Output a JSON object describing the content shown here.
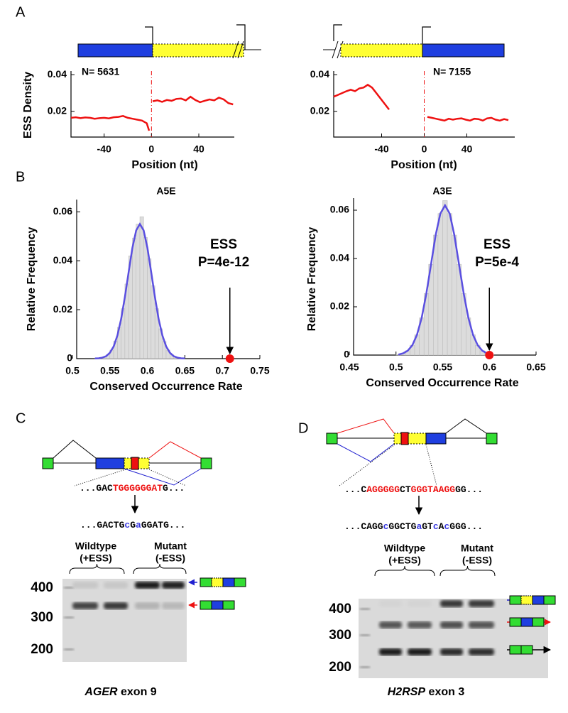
{
  "panels": {
    "a": "A",
    "b": "B",
    "c": "C",
    "d": "D"
  },
  "chart_data": [
    {
      "type": "line",
      "ylabel": "ESS Density",
      "xlabel": "Position (nt)",
      "annotation": "N= 5631",
      "xlim": [
        -68,
        70
      ],
      "ylim": [
        0.006,
        0.042
      ],
      "xticks": [
        -40,
        0,
        40
      ],
      "yticks": [
        0.02,
        0.04
      ],
      "series": [
        {
          "color": "#ee1111",
          "x": [
            -68,
            -64,
            -60,
            -56,
            -52,
            -48,
            -44,
            -40,
            -36,
            -32,
            -28,
            -24,
            -20,
            -16,
            -12,
            -8,
            -4,
            -2,
            -1,
            1,
            5,
            9,
            13,
            17,
            21,
            25,
            29,
            33,
            37,
            41,
            45,
            49,
            53,
            57,
            61,
            65,
            69
          ],
          "values": [
            0.0165,
            0.0168,
            0.0163,
            0.0167,
            0.0165,
            0.016,
            0.0163,
            0.0165,
            0.0162,
            0.0168,
            0.017,
            0.0175,
            0.0165,
            0.016,
            0.0155,
            0.015,
            0.0135,
            0.0095,
            null,
            0.0255,
            0.026,
            0.0252,
            0.0262,
            0.0258,
            0.0268,
            0.027,
            0.026,
            0.028,
            0.0262,
            0.025,
            0.0258,
            0.0265,
            0.026,
            0.0275,
            0.0265,
            0.0245,
            0.0238
          ]
        }
      ]
    },
    {
      "type": "line",
      "xlabel": "Position (nt)",
      "annotation": "N= 7155",
      "xlim": [
        -85,
        85
      ],
      "ylim": [
        0.006,
        0.042
      ],
      "xticks": [
        -40,
        0,
        40
      ],
      "yticks": [
        0.02,
        0.04
      ],
      "series": [
        {
          "color": "#ee1111",
          "x": [
            -85,
            -81,
            -77,
            -73,
            -69,
            -65,
            -61,
            -57,
            -53,
            -49,
            -45,
            -41,
            -37,
            -33,
            -15,
            3,
            7,
            11,
            15,
            19,
            23,
            27,
            31,
            35,
            39,
            43,
            47,
            51,
            55,
            59,
            63,
            67,
            71,
            75,
            79
          ],
          "values": [
            0.028,
            0.029,
            0.03,
            0.031,
            0.0318,
            0.031,
            0.0325,
            0.033,
            0.0345,
            0.033,
            0.03,
            0.027,
            0.024,
            0.021,
            null,
            0.017,
            0.0165,
            0.016,
            0.0155,
            0.015,
            0.016,
            0.0155,
            0.016,
            0.0162,
            0.0155,
            0.015,
            0.016,
            0.0158,
            0.015,
            0.0162,
            0.0165,
            0.0155,
            0.015,
            0.0158,
            0.0152
          ]
        }
      ]
    },
    {
      "type": "histogram",
      "title": "A5E",
      "ylabel": "Relative Frequency",
      "xlabel": "Conserved Occurrence Rate",
      "annotation": [
        "ESS",
        "P=4e-12"
      ],
      "observed": 0.71,
      "observed_color": "#ee1111",
      "xlim": [
        0.5,
        0.75
      ],
      "ylim": [
        0,
        0.065
      ],
      "xticks": [
        0.5,
        0.55,
        0.6,
        0.65,
        0.7,
        0.75
      ],
      "yticks": [
        0,
        0.02,
        0.04,
        0.06
      ],
      "bins": [
        0.53,
        0.535,
        0.54,
        0.545,
        0.55,
        0.555,
        0.56,
        0.565,
        0.57,
        0.575,
        0.58,
        0.585,
        0.59,
        0.595,
        0.6,
        0.605,
        0.61,
        0.615,
        0.62,
        0.625,
        0.63,
        0.635,
        0.64,
        0.645,
        0.65
      ],
      "counts": [
        0.0001,
        0.0003,
        0.0007,
        0.0016,
        0.0035,
        0.0072,
        0.0128,
        0.0204,
        0.0305,
        0.042,
        0.0493,
        0.055,
        0.058,
        0.0495,
        0.0408,
        0.0298,
        0.0204,
        0.0122,
        0.007,
        0.0035,
        0.0016,
        0.0007,
        0.0003,
        0.0001
      ],
      "color": "#dcdcdc",
      "curve": {
        "color": "#5a4fe0",
        "x": [
          0.53,
          0.535,
          0.54,
          0.545,
          0.55,
          0.555,
          0.56,
          0.565,
          0.57,
          0.575,
          0.58,
          0.585,
          0.59,
          0.595,
          0.6,
          0.605,
          0.61,
          0.615,
          0.62,
          0.625,
          0.63,
          0.635,
          0.64,
          0.645,
          0.65
        ],
        "values": [
          5e-05,
          0.00015,
          0.0004,
          0.001,
          0.0024,
          0.005,
          0.0095,
          0.0162,
          0.0252,
          0.0354,
          0.0453,
          0.0524,
          0.055,
          0.0524,
          0.0453,
          0.0354,
          0.0252,
          0.0162,
          0.0095,
          0.005,
          0.0024,
          0.001,
          0.0004,
          0.00015,
          5e-05
        ]
      }
    },
    {
      "type": "histogram",
      "title": "A3E",
      "ylabel": "Relative Frequency",
      "xlabel": "Conserved Occurrence Rate",
      "annotation": [
        "ESS",
        "P=5e-4"
      ],
      "observed": 0.6,
      "observed_color": "#ee1111",
      "xlim": [
        0.45,
        0.65
      ],
      "ylim": [
        0,
        0.065
      ],
      "xticks": [
        0.45,
        0.5,
        0.55,
        0.6,
        0.65
      ],
      "yticks": [
        0,
        0.02,
        0.04,
        0.06
      ],
      "bins": [
        0.5,
        0.505,
        0.51,
        0.515,
        0.52,
        0.525,
        0.53,
        0.535,
        0.54,
        0.545,
        0.55,
        0.555,
        0.56,
        0.565,
        0.57,
        0.575,
        0.58,
        0.585,
        0.59,
        0.595,
        0.6,
        0.605
      ],
      "counts": [
        0.0002,
        0.0007,
        0.0018,
        0.0041,
        0.0084,
        0.0154,
        0.0255,
        0.0376,
        0.0497,
        0.0586,
        0.064,
        0.0586,
        0.0497,
        0.0376,
        0.0255,
        0.0154,
        0.0084,
        0.0041,
        0.0018,
        0.0007,
        0.0002
      ],
      "color": "#dcdcdc",
      "curve": {
        "color": "#5a4fe0",
        "x": [
          0.5025,
          0.5075,
          0.5125,
          0.5175,
          0.5225,
          0.5275,
          0.5325,
          0.5375,
          0.5425,
          0.5475,
          0.5525,
          0.5575,
          0.5625,
          0.5675,
          0.5725,
          0.5775,
          0.5825,
          0.5875,
          0.5925,
          0.5975,
          0.6025
        ],
        "values": [
          0.0002,
          0.0007,
          0.0018,
          0.0041,
          0.0084,
          0.0154,
          0.0255,
          0.0376,
          0.0497,
          0.0586,
          0.062,
          0.0586,
          0.0497,
          0.0376,
          0.0255,
          0.0154,
          0.0084,
          0.0041,
          0.0018,
          0.0007,
          0.0002
        ]
      }
    }
  ],
  "gels": [
    {
      "wildtype": [
        {
          "text": "...GAC",
          "color": "#000000"
        },
        {
          "text": "TGGGGGGAT",
          "color": "#ee1111"
        },
        {
          "text": "G...",
          "color": "#000000"
        }
      ],
      "mutant": [
        {
          "text": "...GACTG",
          "color": "#000000"
        },
        {
          "text": "c",
          "color": "#3a3ae0"
        },
        {
          "text": "G",
          "color": "#000000"
        },
        {
          "text": "a",
          "color": "#3a3ae0"
        },
        {
          "text": "GGATG...",
          "color": "#000000"
        }
      ],
      "groups": [
        [
          "Wildtype",
          "(+ESS)"
        ],
        [
          "Mutant",
          "(-ESS)"
        ]
      ],
      "ladder": [
        "400",
        "300",
        "200"
      ],
      "caption": [
        {
          "text": "AGER",
          "italic": true
        },
        {
          "text": " exon 9",
          "italic": false
        }
      ]
    },
    {
      "wildtype": [
        {
          "text": "...C",
          "color": "#000000"
        },
        {
          "text": "AGGGGG",
          "color": "#ee1111"
        },
        {
          "text": "CT",
          "color": "#000000"
        },
        {
          "text": "GGGTAAGG",
          "color": "#ee1111"
        },
        {
          "text": "GG...",
          "color": "#000000"
        }
      ],
      "mutant": [
        {
          "text": "...CAGG",
          "color": "#000000"
        },
        {
          "text": "c",
          "color": "#3a3ae0"
        },
        {
          "text": "GGCTG",
          "color": "#000000"
        },
        {
          "text": "a",
          "color": "#3a3ae0"
        },
        {
          "text": "GT",
          "color": "#000000"
        },
        {
          "text": "c",
          "color": "#3a3ae0"
        },
        {
          "text": "A",
          "color": "#000000"
        },
        {
          "text": "c",
          "color": "#3a3ae0"
        },
        {
          "text": "GGG...",
          "color": "#000000"
        }
      ],
      "groups": [
        [
          "Wildtype",
          "(+ESS)"
        ],
        [
          "Mutant",
          "(-ESS)"
        ]
      ],
      "ladder": [
        "400",
        "300",
        "200"
      ],
      "caption": [
        {
          "text": "H2RSP",
          "italic": true
        },
        {
          "text": " exon 3",
          "italic": false
        }
      ]
    }
  ]
}
